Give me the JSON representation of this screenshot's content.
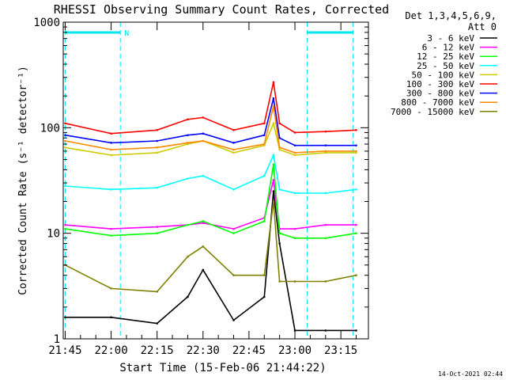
{
  "chart_data": {
    "type": "line",
    "title": "RHESSI Observing Summary Count Rates, Corrected",
    "ylabel": "Corrected Count Rate (s⁻¹ detector⁻¹)",
    "xlabel": "Start Time (15-Feb-06 21:44:22)",
    "y_scale": "log",
    "ylim": [
      1,
      1000
    ],
    "xlim": [
      "21:44:22",
      "23:24"
    ],
    "x_ticks": [
      "21:45",
      "22:00",
      "22:15",
      "22:30",
      "22:45",
      "23:00",
      "23:15"
    ],
    "y_ticks": [
      "1",
      "10",
      "100",
      "1000"
    ],
    "grid": false,
    "legend_position": "top-right",
    "detector_info": [
      "Det 1,3,4,5,6,9,",
      "Att 0"
    ],
    "footer_date": "14-Oct-2021 02:44",
    "flag_label": "N",
    "flags": [
      {
        "name": "N",
        "start": "21:45",
        "end": "22:03"
      },
      {
        "name": "N",
        "start": "23:04",
        "end": "23:19"
      }
    ],
    "night_boundaries": [
      "21:45",
      "22:03",
      "23:04",
      "23:19"
    ],
    "x": [
      "21:45",
      "22:00",
      "22:15",
      "22:25",
      "22:30",
      "22:40",
      "22:50",
      "22:53",
      "22:55",
      "23:00",
      "23:10",
      "23:20"
    ],
    "series": [
      {
        "name": "3 - 6 keV",
        "color": "#000000",
        "values": [
          1.6,
          1.6,
          1.4,
          2.5,
          4.5,
          1.5,
          2.5,
          25,
          8,
          1.2,
          1.2,
          1.2
        ]
      },
      {
        "name": "6 - 12 keV",
        "color": "#ff00ff",
        "values": [
          12,
          11,
          11.5,
          12,
          12.5,
          11,
          14,
          32,
          11,
          11,
          12,
          12
        ]
      },
      {
        "name": "12 - 25 keV",
        "color": "#00ff00",
        "values": [
          11,
          9.5,
          10,
          12,
          13,
          10,
          13,
          45,
          10,
          9,
          9,
          10
        ]
      },
      {
        "name": "25 - 50 keV",
        "color": "#00ffff",
        "values": [
          28,
          26,
          27,
          33,
          35,
          26,
          35,
          55,
          26,
          24,
          24,
          26
        ]
      },
      {
        "name": "50 - 100 keV",
        "color": "#cccc00",
        "values": [
          65,
          55,
          58,
          70,
          75,
          58,
          68,
          110,
          62,
          55,
          58,
          58
        ]
      },
      {
        "name": "100 - 300 keV",
        "color": "#ff0000",
        "values": [
          110,
          88,
          95,
          120,
          125,
          95,
          110,
          270,
          110,
          90,
          92,
          95
        ]
      },
      {
        "name": "300 - 800 keV",
        "color": "#0000ff",
        "values": [
          85,
          72,
          75,
          85,
          88,
          72,
          85,
          190,
          80,
          68,
          68,
          68
        ]
      },
      {
        "name": "800 - 7000 keV",
        "color": "#ff8800",
        "values": [
          75,
          62,
          65,
          72,
          75,
          62,
          70,
          160,
          65,
          58,
          60,
          60
        ]
      },
      {
        "name": "7000 - 15000 keV",
        "color": "#808000",
        "values": [
          5,
          3,
          2.8,
          6,
          7.5,
          4,
          4,
          20,
          3.5,
          3.5,
          3.5,
          4
        ]
      }
    ]
  }
}
